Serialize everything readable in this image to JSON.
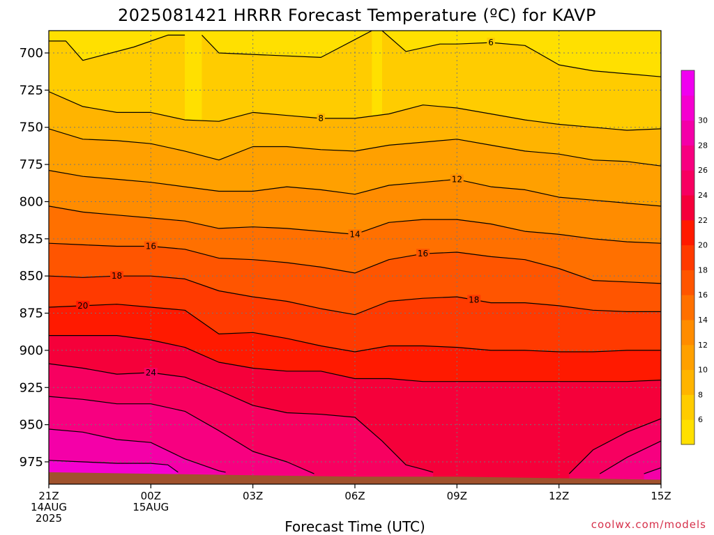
{
  "title": "2025081421 HRRR Forecast Temperature (ºC) for KAVP",
  "xlabel": "Forecast Time (UTC)",
  "credit": "coolwx.com/models",
  "colors": {
    "contour_line": "#000000",
    "ground": "#a0522d",
    "grid": "#777777",
    "credit": "#d6304a"
  },
  "chart_data": {
    "type": "heatmap",
    "title": "2025081421 HRRR Forecast Temperature (ºC) for KAVP",
    "xlabel": "Forecast Time (UTC)",
    "ylabel": "",
    "x_ticks": [
      {
        "hour": 0,
        "lines": [
          "21Z",
          "14AUG",
          "2025"
        ]
      },
      {
        "hour": 3,
        "lines": [
          "00Z",
          "15AUG"
        ]
      },
      {
        "hour": 6,
        "lines": [
          "03Z"
        ]
      },
      {
        "hour": 9,
        "lines": [
          "06Z"
        ]
      },
      {
        "hour": 12,
        "lines": [
          "09Z"
        ]
      },
      {
        "hour": 15,
        "lines": [
          "12Z"
        ]
      },
      {
        "hour": 18,
        "lines": [
          "15Z"
        ]
      }
    ],
    "xlim": [
      0,
      18
    ],
    "y_ticks": [
      700,
      725,
      750,
      775,
      800,
      825,
      850,
      875,
      900,
      925,
      950,
      975
    ],
    "ylim": [
      685,
      990
    ],
    "y_reversed": true,
    "grid": true,
    "colorbar": {
      "levels": [
        4,
        6,
        8,
        10,
        12,
        14,
        16,
        18,
        20,
        22,
        24,
        26,
        28,
        30,
        32
      ],
      "tick_labels": [
        "6",
        "8",
        "10",
        "12",
        "14",
        "16",
        "18",
        "20",
        "22",
        "24",
        "26",
        "28",
        "30"
      ],
      "colors": [
        "#ffe000",
        "#ffcc00",
        "#ffb400",
        "#ffa000",
        "#ff8c00",
        "#ff7000",
        "#ff5500",
        "#ff3a00",
        "#ff1a00",
        "#f5003a",
        "#f70060",
        "#f70080",
        "#f400a8",
        "#f500d0",
        "#f000f0"
      ],
      "placement": "right"
    },
    "surface_pressure_hpa": [
      {
        "hour": 0,
        "p": 982
      },
      {
        "hour": 3,
        "p": 983
      },
      {
        "hour": 6,
        "p": 984
      },
      {
        "hour": 9,
        "p": 985
      },
      {
        "hour": 12,
        "p": 985
      },
      {
        "hour": 15,
        "p": 986
      },
      {
        "hour": 18,
        "p": 987
      }
    ],
    "contours": [
      {
        "level": 6,
        "points": [
          [
            0,
            692
          ],
          [
            0.5,
            692
          ],
          [
            1,
            705
          ],
          [
            2.5,
            696
          ],
          [
            3.5,
            688
          ],
          [
            4,
            688
          ]
        ],
        "labels": []
      },
      {
        "level": 6,
        "points": [
          [
            4.5,
            688
          ],
          [
            5,
            700
          ],
          [
            8,
            703
          ],
          [
            9.5,
            685
          ]
        ],
        "labels": []
      },
      {
        "level": 6,
        "points": [
          [
            9.8,
            685
          ],
          [
            10.5,
            699
          ],
          [
            11.5,
            694
          ],
          [
            12,
            694
          ],
          [
            13,
            693
          ],
          [
            14,
            695
          ],
          [
            15,
            708
          ],
          [
            16,
            712
          ],
          [
            17,
            714
          ],
          [
            18,
            716
          ]
        ],
        "labels": [
          {
            "hour": 13,
            "text": "6"
          }
        ]
      },
      {
        "level": 8,
        "points": [
          [
            0,
            726
          ],
          [
            1,
            736
          ],
          [
            2,
            740
          ],
          [
            3,
            740
          ],
          [
            4,
            745
          ],
          [
            5,
            746
          ],
          [
            6,
            740
          ],
          [
            7,
            742
          ],
          [
            8,
            744
          ],
          [
            9,
            744
          ],
          [
            10,
            741
          ],
          [
            11,
            735
          ],
          [
            12,
            737
          ],
          [
            13,
            741
          ],
          [
            14,
            745
          ],
          [
            15,
            748
          ],
          [
            16,
            750
          ],
          [
            17,
            752
          ],
          [
            18,
            751
          ]
        ],
        "labels": [
          {
            "hour": 8,
            "text": "8"
          }
        ]
      },
      {
        "level": 10,
        "points": [
          [
            0,
            751
          ],
          [
            1,
            758
          ],
          [
            2,
            759
          ],
          [
            3,
            761
          ],
          [
            4,
            766
          ],
          [
            5,
            772
          ],
          [
            6,
            763
          ],
          [
            7,
            763
          ],
          [
            8,
            765
          ],
          [
            9,
            766
          ],
          [
            10,
            762
          ],
          [
            11,
            760
          ],
          [
            12,
            758
          ],
          [
            13,
            762
          ],
          [
            14,
            766
          ],
          [
            15,
            768
          ],
          [
            16,
            772
          ],
          [
            17,
            773
          ],
          [
            18,
            776
          ]
        ],
        "labels": []
      },
      {
        "level": 12,
        "points": [
          [
            0,
            779
          ],
          [
            1,
            783
          ],
          [
            2,
            785
          ],
          [
            3,
            787
          ],
          [
            4,
            790
          ],
          [
            5,
            793
          ],
          [
            6,
            793
          ],
          [
            7,
            790
          ],
          [
            8,
            792
          ],
          [
            9,
            795
          ],
          [
            10,
            789
          ],
          [
            11,
            787
          ],
          [
            12,
            785
          ],
          [
            13,
            790
          ],
          [
            14,
            792
          ],
          [
            15,
            797
          ],
          [
            16,
            799
          ],
          [
            17,
            801
          ],
          [
            18,
            803
          ]
        ],
        "labels": [
          {
            "hour": 12,
            "text": "12"
          }
        ]
      },
      {
        "level": 14,
        "points": [
          [
            0,
            803
          ],
          [
            1,
            807
          ],
          [
            2,
            809
          ],
          [
            3,
            811
          ],
          [
            4,
            813
          ],
          [
            5,
            818
          ],
          [
            6,
            817
          ],
          [
            7,
            818
          ],
          [
            8,
            820
          ],
          [
            9,
            822
          ],
          [
            10,
            814
          ],
          [
            11,
            812
          ],
          [
            12,
            812
          ],
          [
            13,
            815
          ],
          [
            14,
            820
          ],
          [
            15,
            822
          ],
          [
            16,
            825
          ],
          [
            17,
            827
          ],
          [
            18,
            828
          ]
        ],
        "labels": [
          {
            "hour": 9,
            "text": "14"
          }
        ]
      },
      {
        "level": 16,
        "points": [
          [
            0,
            828
          ],
          [
            1,
            829
          ],
          [
            2,
            830
          ],
          [
            3,
            830
          ],
          [
            4,
            832
          ],
          [
            5,
            838
          ],
          [
            6,
            839
          ],
          [
            7,
            841
          ],
          [
            8,
            844
          ],
          [
            9,
            848
          ],
          [
            10,
            839
          ],
          [
            11,
            835
          ],
          [
            12,
            834
          ],
          [
            13,
            837
          ],
          [
            14,
            839
          ],
          [
            15,
            845
          ],
          [
            16,
            853
          ],
          [
            17,
            854
          ],
          [
            18,
            855
          ]
        ],
        "labels": [
          {
            "hour": 3,
            "text": "16"
          },
          {
            "hour": 11,
            "text": "16"
          }
        ]
      },
      {
        "level": 18,
        "points": [
          [
            0,
            850
          ],
          [
            1,
            851
          ],
          [
            2,
            850
          ],
          [
            3,
            850
          ],
          [
            4,
            852
          ],
          [
            5,
            860
          ],
          [
            6,
            864
          ],
          [
            7,
            867
          ],
          [
            8,
            872
          ],
          [
            9,
            876
          ],
          [
            10,
            867
          ],
          [
            11,
            865
          ],
          [
            12,
            864
          ],
          [
            13,
            868
          ],
          [
            14,
            868
          ],
          [
            15,
            870
          ],
          [
            16,
            873
          ],
          [
            17,
            874
          ],
          [
            18,
            874
          ]
        ],
        "labels": [
          {
            "hour": 2,
            "text": "18"
          },
          {
            "hour": 12.5,
            "text": "18"
          }
        ]
      },
      {
        "level": 20,
        "points": [
          [
            0,
            871
          ],
          [
            1,
            870
          ],
          [
            2,
            869
          ],
          [
            3,
            871
          ],
          [
            4,
            873
          ],
          [
            5,
            889
          ],
          [
            6,
            888
          ],
          [
            7,
            892
          ],
          [
            8,
            897
          ],
          [
            9,
            901
          ],
          [
            10,
            897
          ],
          [
            11,
            897
          ],
          [
            12,
            898
          ],
          [
            13,
            900
          ],
          [
            14,
            900
          ],
          [
            15,
            901
          ],
          [
            16,
            901
          ],
          [
            17,
            900
          ],
          [
            18,
            900
          ]
        ],
        "labels": [
          {
            "hour": 1,
            "text": "20"
          }
        ]
      },
      {
        "level": 22,
        "points": [
          [
            0,
            890
          ],
          [
            1,
            890
          ],
          [
            2,
            890
          ],
          [
            3,
            893
          ],
          [
            4,
            898
          ],
          [
            5,
            908
          ],
          [
            6,
            912
          ],
          [
            7,
            914
          ],
          [
            8,
            914
          ],
          [
            9,
            919
          ],
          [
            10,
            919
          ],
          [
            11,
            921
          ],
          [
            12,
            921
          ],
          [
            13,
            921
          ],
          [
            14,
            921
          ],
          [
            15,
            921
          ],
          [
            16,
            921
          ],
          [
            17,
            921
          ],
          [
            18,
            920
          ]
        ],
        "labels": []
      },
      {
        "level": 24,
        "points": [
          [
            0,
            909
          ],
          [
            1,
            912
          ],
          [
            2,
            916
          ],
          [
            3,
            915
          ],
          [
            4,
            918
          ],
          [
            5,
            927
          ],
          [
            6,
            937
          ],
          [
            7,
            942
          ],
          [
            8,
            943
          ],
          [
            9,
            945
          ],
          [
            9.8,
            961
          ],
          [
            10.5,
            977
          ],
          [
            11,
            980
          ],
          [
            11.3,
            982
          ]
        ],
        "labels": [
          {
            "hour": 3,
            "text": "24"
          }
        ]
      },
      {
        "level": 24,
        "points": [
          [
            15.3,
            983
          ],
          [
            16,
            967
          ],
          [
            17,
            955
          ],
          [
            18,
            946
          ]
        ],
        "labels": []
      },
      {
        "level": 26,
        "points": [
          [
            0,
            931
          ],
          [
            1,
            933
          ],
          [
            2,
            936
          ],
          [
            3,
            936
          ],
          [
            4,
            941
          ],
          [
            5,
            954
          ],
          [
            6,
            968
          ],
          [
            7,
            975
          ],
          [
            7.8,
            983
          ]
        ],
        "labels": []
      },
      {
        "level": 26,
        "points": [
          [
            16.2,
            983
          ],
          [
            17,
            972
          ],
          [
            18,
            961
          ]
        ],
        "labels": []
      },
      {
        "level": 28,
        "points": [
          [
            0,
            953
          ],
          [
            1,
            955
          ],
          [
            2,
            960
          ],
          [
            3,
            962
          ],
          [
            4,
            973
          ],
          [
            5,
            981
          ],
          [
            5.2,
            982
          ]
        ],
        "labels": []
      },
      {
        "level": 28,
        "points": [
          [
            17.5,
            983
          ],
          [
            18,
            979
          ]
        ],
        "labels": []
      },
      {
        "level": 30,
        "points": [
          [
            0,
            974
          ],
          [
            1,
            975
          ],
          [
            2,
            976
          ],
          [
            3,
            976
          ],
          [
            3.5,
            977
          ],
          [
            3.8,
            982
          ]
        ],
        "labels": []
      }
    ]
  }
}
